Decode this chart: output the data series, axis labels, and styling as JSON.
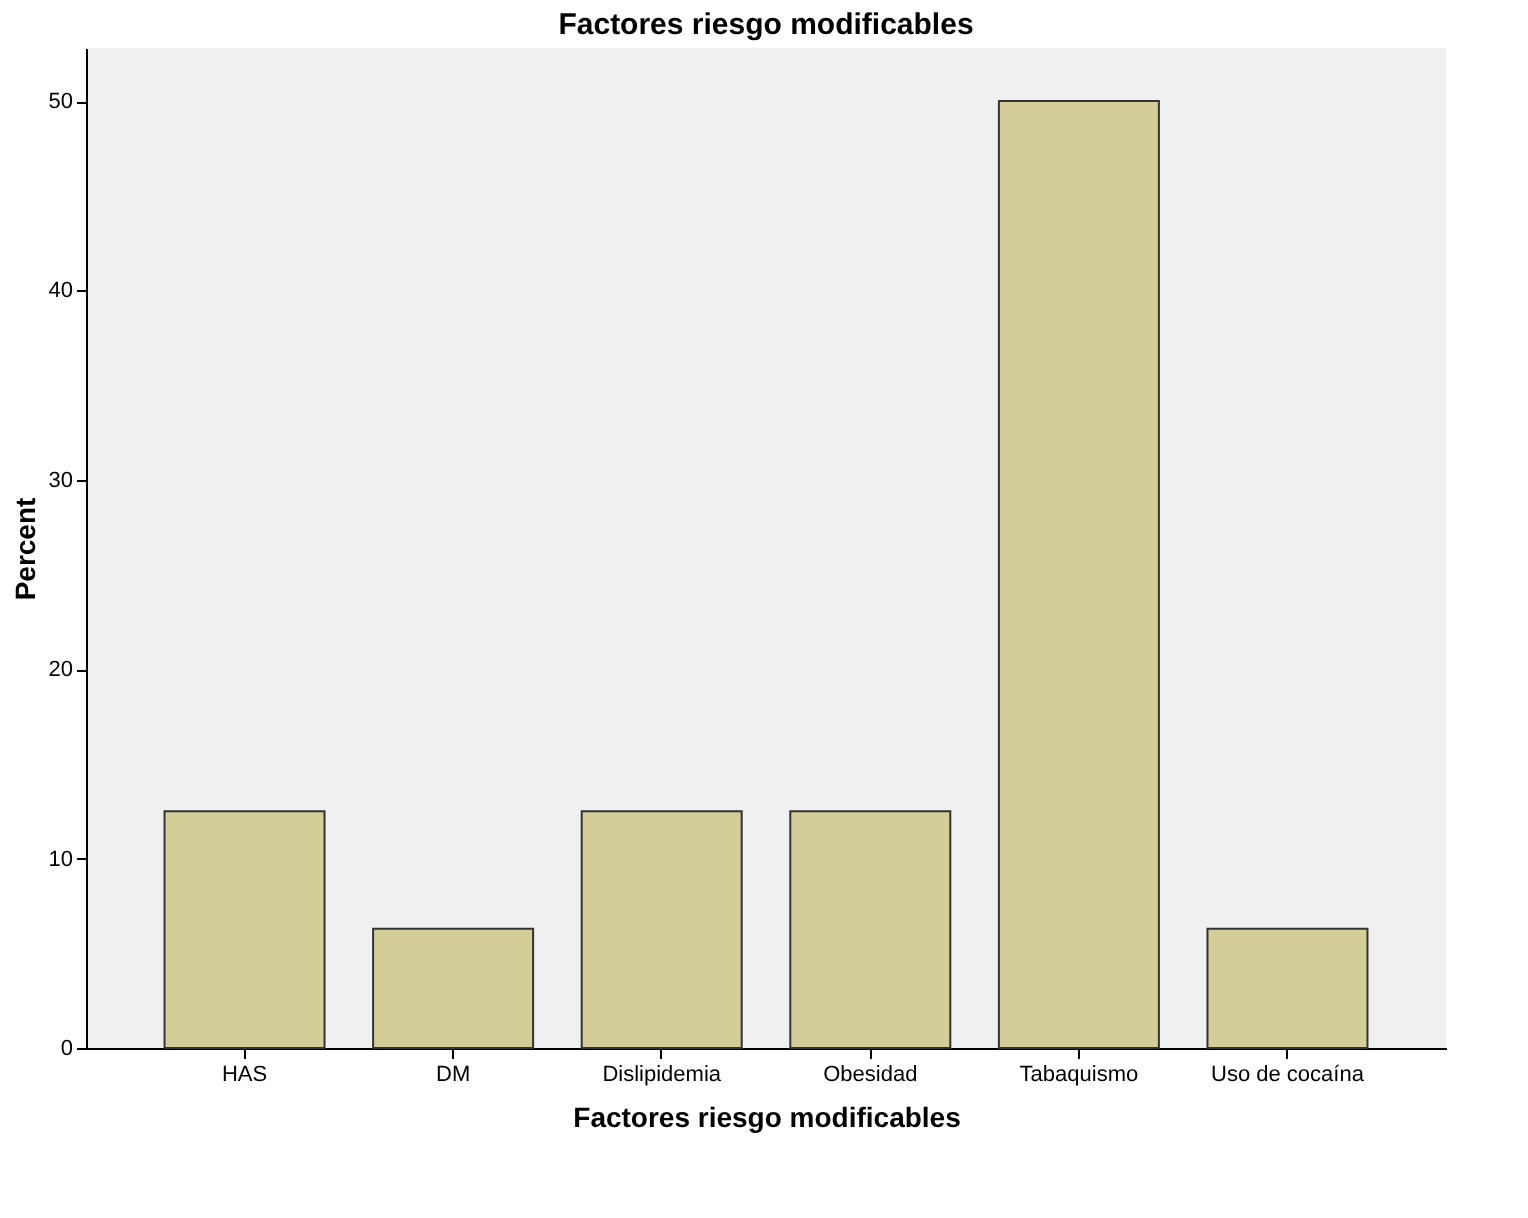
{
  "chart_data": {
    "type": "bar",
    "title": "Factores riesgo modificables",
    "xlabel": "Factores riesgo modificables",
    "ylabel": "Percent",
    "categories": [
      "HAS",
      "DM",
      "Dislipidemia",
      "Obesidad",
      "Tabaquismo",
      "Uso de cocaína"
    ],
    "values": [
      12.5,
      6.3,
      12.5,
      12.5,
      50,
      6.3
    ],
    "color": "#d3ce97",
    "ylim": [
      0,
      52.8
    ],
    "yticks": [
      0,
      10,
      20,
      30,
      40,
      50
    ],
    "grid": false
  }
}
